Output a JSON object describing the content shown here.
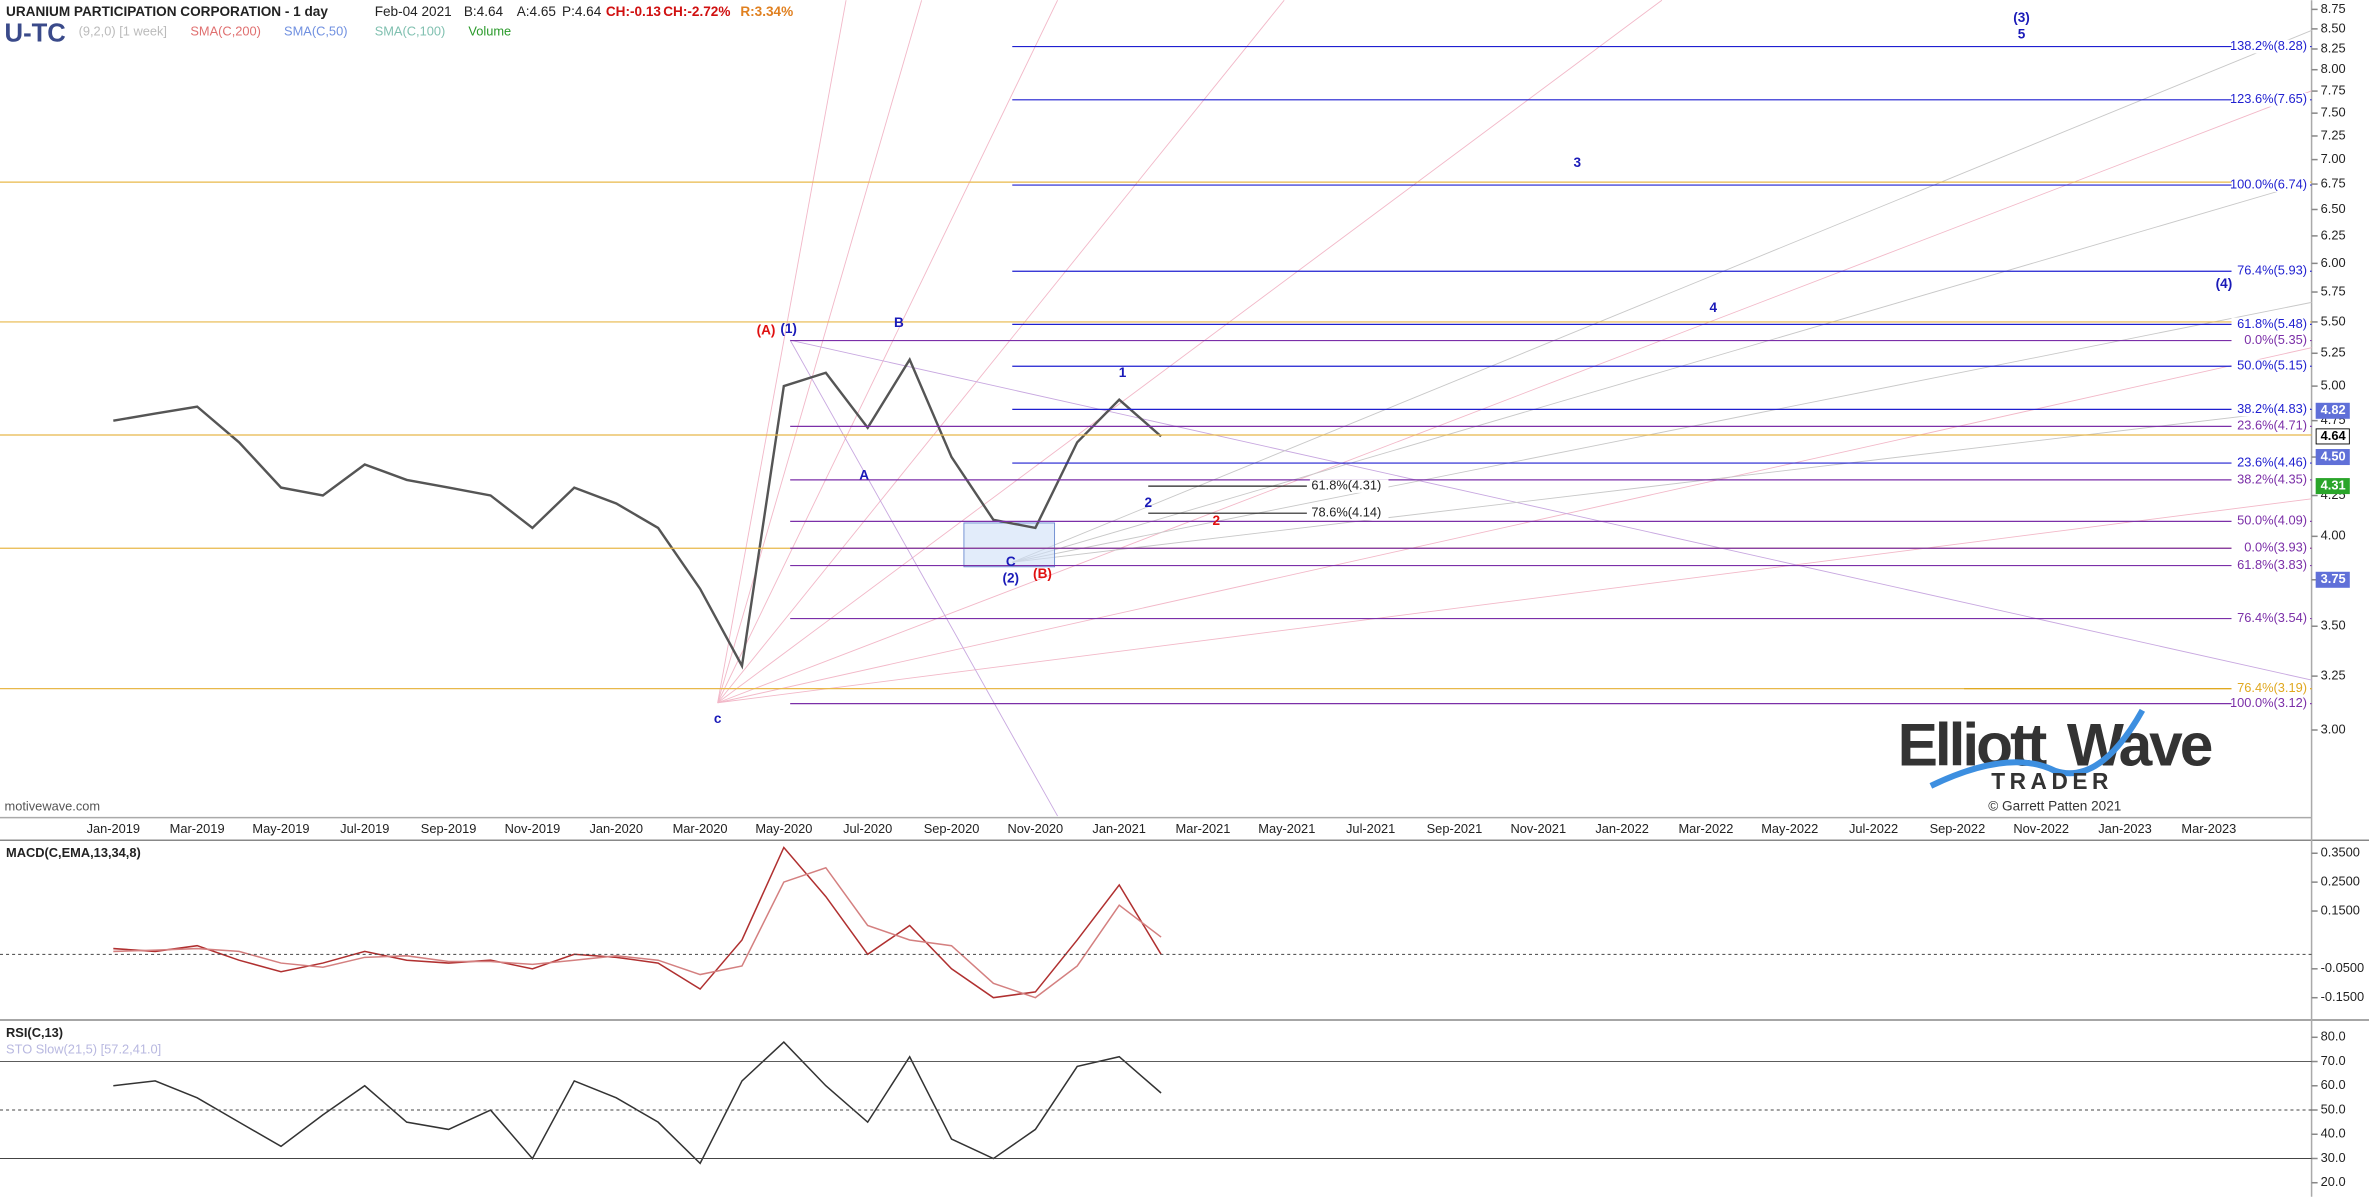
{
  "chart_data": [
    {
      "type": "line",
      "title": "URANIUM PARTICIPATION CORPORATION - 1 day",
      "symbol": "U-TC",
      "settings": "(9,2,0) [1 week]",
      "quote": [
        "Feb-04 2021",
        "B:4.64",
        "A:4.65",
        "P:4.64",
        "CH:-0.13",
        "CH:-2.72%",
        "R:3.34%"
      ],
      "indicators": [
        "SMA(C,200)",
        "SMA(C,50)",
        "SMA(C,100)",
        "Volume"
      ],
      "source": "motivewave.com",
      "categories": [
        "Jan-2019",
        null,
        "Mar-2019",
        null,
        "May-2019",
        null,
        "Jul-2019",
        null,
        "Sep-2019",
        null,
        "Nov-2019",
        null,
        "Jan-2020",
        null,
        "Mar-2020",
        null,
        "May-2020",
        null,
        "Jul-2020",
        null,
        "Sep-2020",
        null,
        "Nov-2020",
        null,
        "Jan-2021",
        null,
        "Mar-2021",
        null,
        "May-2021",
        null,
        "Jul-2021",
        null,
        "Sep-2021",
        null,
        "Nov-2021",
        null,
        "Jan-2022",
        null,
        "Mar-2022",
        null,
        "May-2022",
        null,
        "Jul-2022",
        null,
        "Sep-2022",
        null,
        "Nov-2022",
        null,
        "Jan-2023",
        null,
        "Mar-2023"
      ],
      "series": [
        {
          "color": "#555555",
          "values": [
            4.75,
            4.8,
            4.85,
            4.6,
            4.3,
            4.25,
            4.45,
            4.35,
            4.3,
            4.25,
            4.05,
            4.3,
            4.2,
            4.05,
            3.7,
            3.3,
            5.0,
            5.1,
            4.7,
            5.2,
            4.5,
            4.1,
            4.05,
            4.6,
            4.9,
            4.64,
            null,
            null,
            null,
            null,
            null,
            null,
            null,
            null,
            null,
            null,
            null,
            null,
            null,
            null,
            null,
            null,
            null,
            null,
            null,
            null,
            null,
            null,
            null,
            null,
            null
          ]
        }
      ],
      "log": true,
      "ylim": [
        2.64,
        8.87
      ],
      "yticks": [
        {
          "value": 3,
          "label": "3.00"
        },
        {
          "value": 3.25,
          "label": "3.25"
        },
        {
          "value": 3.5,
          "label": "3.50"
        },
        {
          "value": 3.75,
          "label": "3.75"
        },
        {
          "value": 4,
          "label": "4.00"
        },
        {
          "value": 4.25,
          "label": "4.25"
        },
        {
          "value": 4.5,
          "label": "4.50"
        },
        {
          "value": 4.75,
          "label": "4.75"
        },
        {
          "value": 5,
          "label": "5.00"
        },
        {
          "value": 5.25,
          "label": "5.25"
        },
        {
          "value": 5.5,
          "label": "5.50"
        },
        {
          "value": 5.75,
          "label": "5.75"
        },
        {
          "value": 6,
          "label": "6.00"
        },
        {
          "value": 6.25,
          "label": "6.25"
        },
        {
          "value": 6.5,
          "label": "6.50"
        },
        {
          "value": 6.75,
          "label": "6.75"
        },
        {
          "value": 7,
          "label": "7.00"
        },
        {
          "value": 7.25,
          "label": "7.25"
        },
        {
          "value": 7.5,
          "label": "7.50"
        },
        {
          "value": 7.75,
          "label": "7.75"
        },
        {
          "value": 8,
          "label": "8.00"
        },
        {
          "value": 8.25,
          "label": "8.25"
        },
        {
          "value": 8.5,
          "label": "8.50"
        },
        {
          "value": 8.75,
          "label": "8.75"
        }
      ],
      "support_lines": {
        "color": "#e8b84a",
        "values": [
          6.77,
          5.5,
          4.65,
          3.93,
          3.19
        ]
      },
      "fib_sets": [
        {
          "color": "#1f1fd0",
          "levels": [
            {
              "label": "138.2%(8.28)",
              "value": 8.28
            },
            {
              "label": "123.6%(7.65)",
              "value": 7.65
            },
            {
              "label": "100.0%(6.74)",
              "value": 6.74
            },
            {
              "label": "76.4%(5.93)",
              "value": 5.93
            },
            {
              "label": "61.8%(5.48)",
              "value": 5.48
            },
            {
              "label": "50.0%(5.15)",
              "value": 5.15
            },
            {
              "label": "38.2%(4.83)",
              "value": 4.83
            },
            {
              "label": "23.6%(4.46)",
              "value": 4.46
            }
          ]
        },
        {
          "color": "#7b2fa8",
          "levels": [
            {
              "label": "0.0%(5.35)",
              "value": 5.35
            },
            {
              "label": "23.6%(4.71)",
              "value": 4.71
            },
            {
              "label": "38.2%(4.35)",
              "value": 4.35
            },
            {
              "label": "50.0%(4.09)",
              "value": 4.09
            },
            {
              "label": "0.0%(3.93)",
              "value": 3.93
            },
            {
              "label": "61.8%(3.83)",
              "value": 3.83
            },
            {
              "label": "76.4%(3.54)",
              "value": 3.54
            },
            {
              "label": "100.0%(3.12)",
              "value": 3.12
            }
          ]
        },
        {
          "color": "#222222",
          "levels": [
            {
              "label": "61.8%(4.31)",
              "value": 4.31
            },
            {
              "label": "78.6%(4.14)",
              "value": 4.14
            }
          ]
        },
        {
          "color": "#e0a820",
          "levels": [
            {
              "label": "76.4%(3.19)",
              "value": 3.19
            }
          ]
        }
      ],
      "wave_labels": [
        {
          "text": "(A)",
          "color": "#e01010"
        },
        {
          "text": "(1)",
          "color": "#1a1ab8"
        },
        {
          "text": "B",
          "color": "#1a1ab8"
        },
        {
          "text": "A",
          "color": "#1a1ab8"
        },
        {
          "text": "C",
          "color": "#1a1ab8"
        },
        {
          "text": "(2)",
          "color": "#1a1ab8"
        },
        {
          "text": "(B)",
          "color": "#e01010"
        },
        {
          "text": "c",
          "color": "#1a1ab8"
        },
        {
          "text": "1",
          "color": "#1a1ab8"
        },
        {
          "text": "2",
          "color": "#1a1ab8"
        },
        {
          "text": "2",
          "color": "#e01010"
        },
        {
          "text": "3",
          "color": "#1a1ab8"
        },
        {
          "text": "4",
          "color": "#1a1ab8"
        },
        {
          "text": "(4)",
          "color": "#1a1ab8"
        },
        {
          "text": "(3)",
          "color": "#1a1ab8"
        },
        {
          "text": "5",
          "color": "#1a1ab8"
        }
      ],
      "price_badges": [
        {
          "value": 4.82,
          "color": "#6070d8"
        },
        {
          "value": 4.64,
          "color": "#000000"
        },
        {
          "value": 4.5,
          "label": "4.50",
          "color": "#6070d8"
        },
        {
          "value": 4.31,
          "color": "#2aa52a"
        },
        {
          "value": 3.75,
          "color": "#6070d8"
        }
      ]
    },
    {
      "type": "line",
      "title": "MACD(C,EMA,13,34,8)",
      "series": [
        {
          "color": "#b03030",
          "values": [
            0.02,
            0.01,
            0.03,
            -0.02,
            -0.06,
            -0.03,
            0.01,
            -0.02,
            -0.03,
            -0.02,
            -0.05,
            0.0,
            -0.01,
            -0.03,
            -0.12,
            0.05,
            0.37,
            0.2,
            0.0,
            0.1,
            -0.05,
            -0.15,
            -0.13,
            0.05,
            0.24,
            0.0
          ]
        },
        {
          "color": "#d48080",
          "values": [
            0.01,
            0.015,
            0.02,
            0.01,
            -0.03,
            -0.045,
            -0.01,
            -0.005,
            -0.025,
            -0.025,
            -0.035,
            -0.02,
            -0.005,
            -0.02,
            -0.07,
            -0.04,
            0.25,
            0.3,
            0.1,
            0.05,
            0.03,
            -0.1,
            -0.15,
            -0.04,
            0.17,
            0.06
          ]
        }
      ],
      "ylim": [
        -0.222,
        0.395
      ],
      "yticks": [
        {
          "value": 0.35,
          "label": "0.3500"
        },
        {
          "value": 0.25,
          "label": "0.2500"
        },
        {
          "value": 0.15,
          "label": "0.1500"
        },
        {
          "value": -0.05,
          "label": "-0.0500"
        },
        {
          "value": -0.15,
          "label": "-0.1500"
        }
      ]
    },
    {
      "type": "line",
      "title": "RSI(C,13)",
      "subtitle": "STO Slow(21,5) [57.2,41.0]",
      "series": [
        {
          "color": "#333333",
          "values": [
            60,
            62,
            55,
            45,
            35,
            48,
            60,
            45,
            42,
            50,
            30,
            62,
            55,
            45,
            28,
            62,
            78,
            60,
            45,
            72,
            38,
            30,
            42,
            68,
            72,
            57
          ]
        }
      ],
      "ylim": [
        14.2,
        86.5
      ],
      "bands": [
        70,
        50,
        30
      ],
      "yticks": [
        {
          "value": 80,
          "label": "80.0"
        },
        {
          "value": 70,
          "label": "70.0"
        },
        {
          "value": 60,
          "label": "60.0"
        },
        {
          "value": 50,
          "label": "50.0"
        },
        {
          "value": 40,
          "label": "40.0"
        },
        {
          "value": 30,
          "label": "30.0"
        },
        {
          "value": 20,
          "label": "20.0"
        }
      ]
    }
  ],
  "logo": {
    "word1": "Elliott",
    "word2": "Wave",
    "word3": "TRADER",
    "credit": "© Garrett Patten 2021"
  }
}
